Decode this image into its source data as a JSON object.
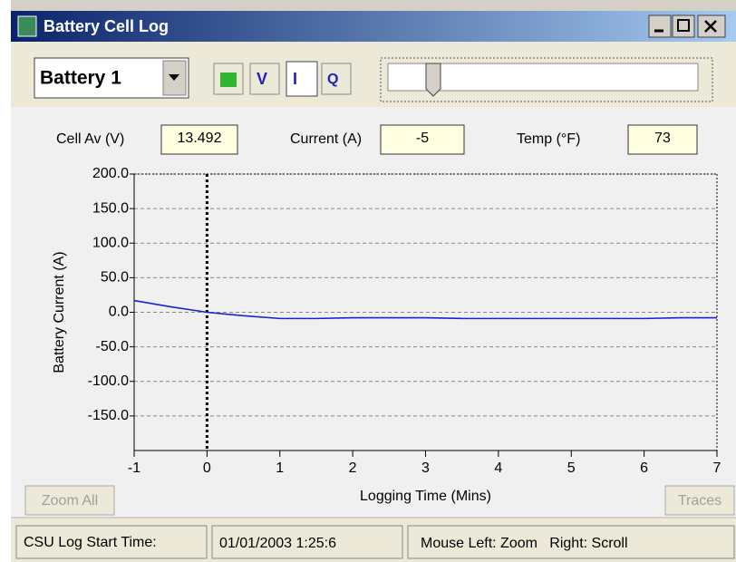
{
  "window": {
    "title": "Battery Cell Log",
    "selector": "Battery 1",
    "readouts": [
      {
        "label": "Cell Av (V)",
        "value": "13.492"
      },
      {
        "label": "Current (A)",
        "value": "-5"
      },
      {
        "label": "Temp (°F)",
        "value": "73"
      }
    ],
    "buttons": [
      "Zoom All",
      "Traces"
    ],
    "status": [
      "CSU Log Start Time:",
      "01/01/2003 1:25:6",
      "Mouse Left: Zoom   Right: Scroll"
    ]
  },
  "chart_data": {
    "type": "line",
    "xlabel": "Logging Time (Mins)",
    "ylabel": "Battery Current (A)",
    "x": [
      -1,
      -0.5,
      0,
      0.5,
      1,
      1.5,
      2,
      3,
      3.5,
      4,
      5,
      6,
      6.5,
      7
    ],
    "values": [
      17,
      8,
      0,
      -5,
      -9,
      -9,
      -8,
      -8,
      -9,
      -9,
      -9,
      -9,
      -8,
      -8
    ],
    "color": "#1f1fd0",
    "marker_x": 0,
    "xlim": [
      -1,
      7
    ],
    "xticks": [
      -1,
      0,
      1,
      2,
      3,
      4,
      5,
      6,
      7
    ],
    "ylim": [
      -200,
      200
    ],
    "yticks": [
      {
        "value": 200,
        "label": "200.0"
      },
      {
        "value": 150,
        "label": "150.0"
      },
      {
        "value": 100,
        "label": "100.0"
      },
      {
        "value": 50,
        "label": "50.0"
      },
      {
        "value": 0,
        "label": "0.0"
      },
      {
        "value": -50,
        "label": "-50.0"
      },
      {
        "value": -100,
        "label": "-100.0"
      },
      {
        "value": -150,
        "label": "-150.0"
      }
    ],
    "grid": true
  }
}
